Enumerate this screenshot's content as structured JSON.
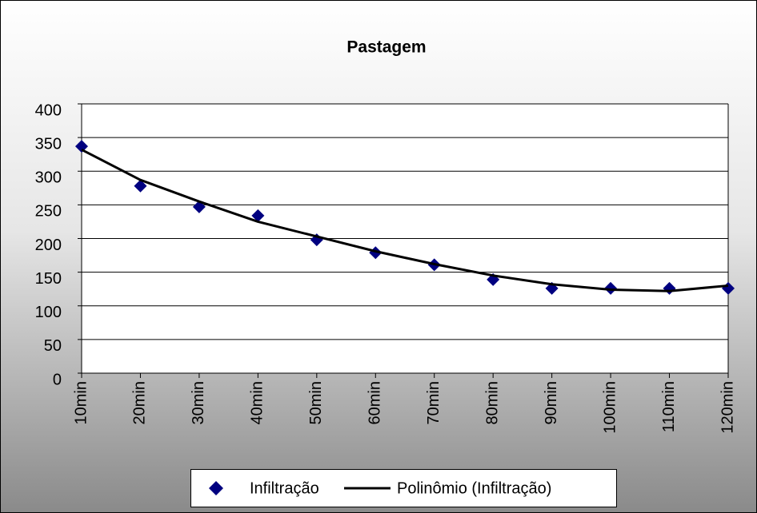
{
  "chart_data": {
    "type": "line",
    "title": "Pastagem",
    "categories": [
      "10min",
      "20min",
      "30min",
      "40min",
      "50min",
      "60min",
      "70min",
      "80min",
      "90min",
      "100min",
      "110min",
      "120min"
    ],
    "series": [
      {
        "name": "Infiltração",
        "color": "#000080",
        "marker": "diamond",
        "line": false,
        "values": [
          337,
          278,
          247,
          234,
          198,
          179,
          161,
          139,
          126,
          126,
          126,
          126
        ]
      },
      {
        "name": "Polinômio (Infiltração)",
        "color": "#000000",
        "marker": "none",
        "line": true,
        "values": [
          332,
          287,
          255,
          225,
          203,
          181,
          162,
          145,
          132,
          124,
          122,
          130
        ]
      }
    ],
    "ylim": [
      0,
      400
    ],
    "yticks": [
      0,
      50,
      100,
      150,
      200,
      250,
      300,
      350,
      400
    ],
    "grid": true,
    "legend": "bottom"
  }
}
